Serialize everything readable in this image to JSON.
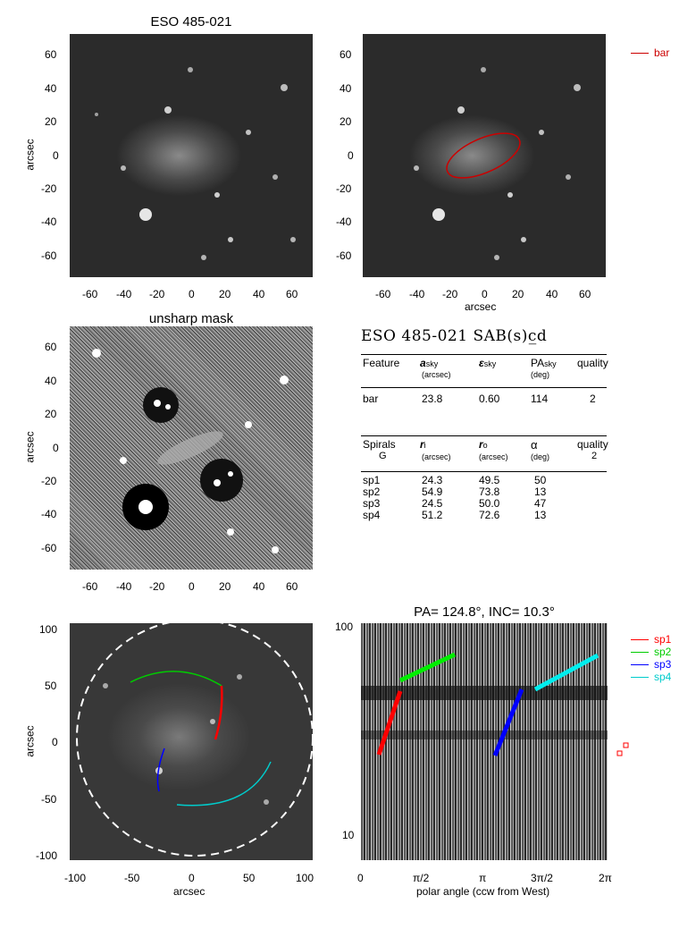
{
  "panels": {
    "tl": {
      "title": "ESO 485-021",
      "ylabel": "arcsec",
      "xticks": [
        "-60",
        "-40",
        "-20",
        "0",
        "20",
        "40",
        "60"
      ],
      "yticks": [
        "60",
        "40",
        "20",
        "0",
        "-20",
        "-40",
        "-60"
      ]
    },
    "tr": {
      "xlabel": "arcsec",
      "xticks": [
        "-60",
        "-40",
        "-20",
        "0",
        "20",
        "40",
        "60"
      ],
      "yticks": [
        "60",
        "40",
        "20",
        "0",
        "-20",
        "-40",
        "-60"
      ]
    },
    "ml": {
      "title": "unsharp mask",
      "ylabel": "arcsec",
      "xticks": [
        "-60",
        "-40",
        "-20",
        "0",
        "20",
        "40",
        "60"
      ],
      "yticks": [
        "60",
        "40",
        "20",
        "0",
        "-20",
        "-40",
        "-60"
      ]
    },
    "bl": {
      "xlabel": "arcsec",
      "ylabel": "arcsec",
      "xticks": [
        "-100",
        "-50",
        "0",
        "50",
        "100"
      ],
      "yticks": [
        "100",
        "50",
        "0",
        "-50",
        "-100"
      ]
    },
    "br": {
      "title": "PA= 124.8°, INC=  10.3°",
      "xlabel": "polar angle (ccw from West)",
      "xticks": [
        "0",
        "π/2",
        "π",
        "3π/2",
        "2π"
      ],
      "yticks": [
        "100",
        "10"
      ]
    }
  },
  "legend_bar": {
    "label": "bar",
    "color": "#cc0000"
  },
  "legend_spirals": [
    {
      "label": "sp1",
      "color": "#ff0000"
    },
    {
      "label": "sp2",
      "color": "#00cc00"
    },
    {
      "label": "sp3",
      "color": "#0000ff"
    },
    {
      "label": "sp4",
      "color": "#00cccc"
    }
  ],
  "table": {
    "heading": "ESO 485-021  SAB(s)c̲d",
    "bar_header": {
      "c1": "Feature",
      "c2": "a",
      "c2sub": "sky",
      "c2unit": "(arcsec)",
      "c3": "ε",
      "c3sub": "sky",
      "c4": "PA",
      "c4sub": "sky",
      "c4unit": "(deg)",
      "c5": "quality"
    },
    "bar_row": {
      "feature": "bar",
      "a": "23.8",
      "eps": "0.60",
      "pa": "114",
      "quality": "2"
    },
    "sp_header": {
      "c1": "Spirals",
      "c1b": "G",
      "c2": "r",
      "c2sub": "i",
      "c2unit": "(arcsec)",
      "c3": "r",
      "c3sub": "o",
      "c3unit": "(arcsec)",
      "c4": "α",
      "c4unit": "(deg)",
      "c5": "quality",
      "c5b": "2"
    },
    "sp_rows": [
      {
        "name": "sp1",
        "ri": "24.3",
        "ro": "49.5",
        "alpha": "50"
      },
      {
        "name": "sp2",
        "ri": "54.9",
        "ro": "73.8",
        "alpha": "13"
      },
      {
        "name": "sp3",
        "ri": "24.5",
        "ro": "50.0",
        "alpha": "47"
      },
      {
        "name": "sp4",
        "ri": "51.2",
        "ro": "72.6",
        "alpha": "13"
      }
    ]
  }
}
